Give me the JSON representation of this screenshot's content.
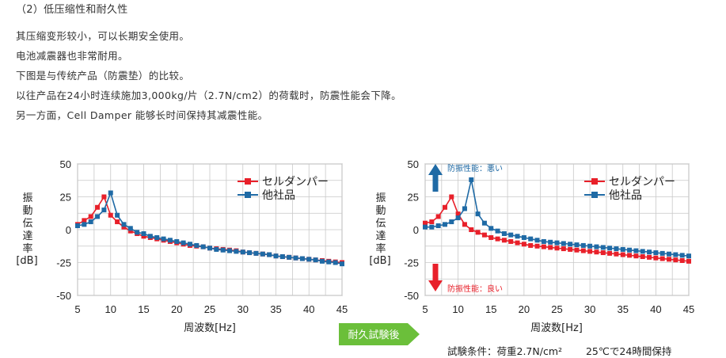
{
  "heading": "（2）低压缩性和耐久性",
  "paragraph": [
    "其压缩变形较小，可以长期安全使用。",
    "电池减震器也非常耐用。",
    "下图是与传统产品（防震垫）的比较。",
    "以往产品在24小时连续施加3,000kg/片（2.7N/cm2）的荷载时，防震性能会下降。",
    "另一方面，Cell Damper 能够长时间保持其减震性能。"
  ],
  "arrow_label": "耐久試験後",
  "conditions": {
    "label": "試験条件：荷重2.7N/cm²",
    "value": "25℃で24時間保持"
  },
  "colors": {
    "cell_damper": "#e8202a",
    "other": "#1f6aa5",
    "arrow": "#6bbf3a",
    "grid": "#c8c8c8"
  },
  "chart_data": [
    {
      "type": "line",
      "xlabel": "周波数[Hz]",
      "ylabel_chars": [
        "振",
        "動",
        "伝",
        "達",
        "率"
      ],
      "ylabel_unit": "[dB]",
      "xlim": [
        5,
        45
      ],
      "ylim": [
        -50,
        50
      ],
      "xticks": [
        "5",
        "10",
        "15",
        "20",
        "25",
        "30",
        "35",
        "40",
        "45"
      ],
      "yticks": [
        "50",
        "25",
        "0",
        "-25",
        "-50"
      ],
      "grid": true,
      "legend_position": "top-right",
      "series": [
        {
          "name": "セルダンパー",
          "color": "#e8202a",
          "x": [
            5,
            6,
            7,
            8,
            9,
            10,
            11,
            12,
            13,
            14,
            15,
            16,
            17,
            18,
            19,
            20,
            21,
            22,
            23,
            24,
            25,
            26,
            27,
            28,
            29,
            30,
            31,
            32,
            33,
            34,
            35,
            36,
            37,
            38,
            39,
            40,
            41,
            42,
            43,
            44,
            45
          ],
          "values": [
            4,
            7,
            10,
            17,
            25,
            11,
            6,
            2,
            -1,
            -3,
            -5,
            -6,
            -7,
            -8,
            -9,
            -10,
            -11,
            -12,
            -12.5,
            -13,
            -14,
            -14.5,
            -15,
            -15.5,
            -16,
            -17,
            -17.5,
            -18,
            -18.5,
            -19,
            -20,
            -20.5,
            -21,
            -21.5,
            -22,
            -22.5,
            -23,
            -23.5,
            -24,
            -24.5,
            -25
          ]
        },
        {
          "name": "他社品",
          "color": "#1f6aa5",
          "x": [
            5,
            6,
            7,
            8,
            9,
            10,
            11,
            12,
            13,
            14,
            15,
            16,
            17,
            18,
            19,
            20,
            21,
            22,
            23,
            24,
            25,
            26,
            27,
            28,
            29,
            30,
            31,
            32,
            33,
            34,
            35,
            36,
            37,
            38,
            39,
            40,
            41,
            42,
            43,
            44,
            45
          ],
          "values": [
            3,
            4,
            6,
            10,
            15,
            28,
            11,
            4,
            1,
            -2,
            -3,
            -5,
            -6,
            -7,
            -8,
            -9,
            -10,
            -11,
            -12,
            -13,
            -14,
            -15,
            -15.5,
            -16,
            -16.5,
            -17,
            -17.5,
            -18,
            -18.5,
            -19,
            -20,
            -20.5,
            -21,
            -21.5,
            -22,
            -22.5,
            -23,
            -24,
            -24.5,
            -25,
            -26
          ]
        }
      ]
    },
    {
      "type": "line",
      "xlabel": "周波数[Hz]",
      "ylabel_chars": [
        "振",
        "動",
        "伝",
        "達",
        "率"
      ],
      "ylabel_unit": "[dB]",
      "xlim": [
        5,
        45
      ],
      "ylim": [
        -50,
        50
      ],
      "xticks": [
        "5",
        "10",
        "15",
        "20",
        "25",
        "30",
        "35",
        "40",
        "45"
      ],
      "yticks": [
        "50",
        "25",
        "0",
        "-25",
        "-50"
      ],
      "grid": true,
      "legend_position": "top-right",
      "annotations": {
        "bad": "防振性能：悪い",
        "good": "防振性能：良い"
      },
      "series": [
        {
          "name": "セルダンパー",
          "color": "#e8202a",
          "x": [
            5,
            6,
            7,
            8,
            9,
            10,
            11,
            12,
            13,
            14,
            15,
            16,
            17,
            18,
            19,
            20,
            21,
            22,
            23,
            24,
            25,
            26,
            27,
            28,
            29,
            30,
            31,
            32,
            33,
            34,
            35,
            36,
            37,
            38,
            39,
            40,
            41,
            42,
            43,
            44,
            45
          ],
          "values": [
            5,
            6,
            10,
            17,
            25,
            12,
            4,
            0,
            -2,
            -4,
            -6,
            -7,
            -8,
            -9,
            -10,
            -11,
            -12,
            -12.5,
            -13,
            -13.5,
            -14,
            -14.5,
            -15,
            -15.5,
            -16,
            -16.5,
            -17,
            -17.5,
            -18,
            -18.5,
            -19,
            -19.5,
            -20,
            -20.5,
            -21,
            -21.5,
            -22,
            -22.5,
            -23,
            -23.5,
            -24
          ]
        },
        {
          "name": "他社品",
          "color": "#1f6aa5",
          "x": [
            5,
            6,
            7,
            8,
            9,
            10,
            11,
            12,
            13,
            14,
            15,
            16,
            17,
            18,
            19,
            20,
            21,
            22,
            23,
            24,
            25,
            26,
            27,
            28,
            29,
            30,
            31,
            32,
            33,
            34,
            35,
            36,
            37,
            38,
            39,
            40,
            41,
            42,
            43,
            44,
            45
          ],
          "values": [
            2,
            2,
            3,
            4,
            6,
            9,
            16,
            38,
            12,
            5,
            1,
            -1,
            -3,
            -4,
            -5,
            -6,
            -7,
            -8,
            -9,
            -9.5,
            -10,
            -10.5,
            -11,
            -11.5,
            -12,
            -12.5,
            -13,
            -13.5,
            -14,
            -14.5,
            -15,
            -15.5,
            -16,
            -16.5,
            -17,
            -17.5,
            -18,
            -18.5,
            -19,
            -19.5,
            -20
          ]
        }
      ]
    }
  ]
}
